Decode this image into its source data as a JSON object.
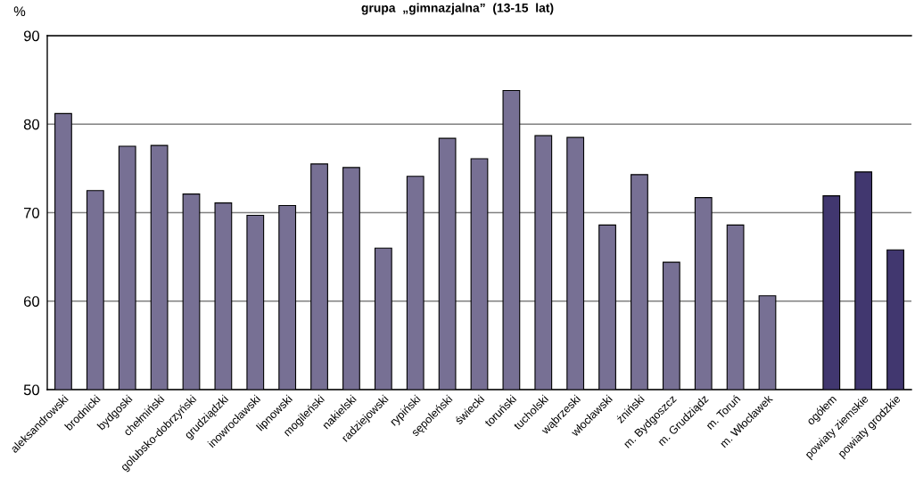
{
  "chart_data": {
    "type": "bar",
    "title": "grupa  „gimnazjalna”  (13-15  lat)",
    "ylabel": "%",
    "categories": [
      "aleksandrowski",
      "brodnicki",
      "bydgoski",
      "chełmiński",
      "golubsko-dobrzyński",
      "grudziądzki",
      "inowrocławski",
      "lipnowski",
      "mogileński",
      "nakielski",
      "radziejowski",
      "rypiński",
      "sępoleński",
      "świecki",
      "toruński",
      "tucholski",
      "wąbrzeski",
      "włocławski",
      "żniński",
      "m. Bydgoszcz",
      "m. Grudziądz",
      "m. Toruń",
      "m. Włocławek",
      null,
      "ogółem",
      "powiaty ziemskie",
      "powiaty grodzkie"
    ],
    "values": [
      81.2,
      72.5,
      77.5,
      77.6,
      72.1,
      71.1,
      69.7,
      70.8,
      75.5,
      75.1,
      66.0,
      74.1,
      78.4,
      76.1,
      83.8,
      78.7,
      78.5,
      68.6,
      74.3,
      64.4,
      71.7,
      68.6,
      60.6,
      null,
      71.9,
      74.6,
      65.8
    ],
    "colors": [
      "#777094",
      "#777094",
      "#777094",
      "#777094",
      "#777094",
      "#777094",
      "#777094",
      "#777094",
      "#777094",
      "#777094",
      "#777094",
      "#777094",
      "#777094",
      "#777094",
      "#777094",
      "#777094",
      "#777094",
      "#777094",
      "#777094",
      "#777094",
      "#777094",
      "#777094",
      "#777094",
      null,
      "#41376f",
      "#41376f",
      "#41376f"
    ],
    "ylim": [
      50,
      90
    ],
    "yticks": [
      50,
      60,
      70,
      80,
      90
    ],
    "grid": "y"
  }
}
